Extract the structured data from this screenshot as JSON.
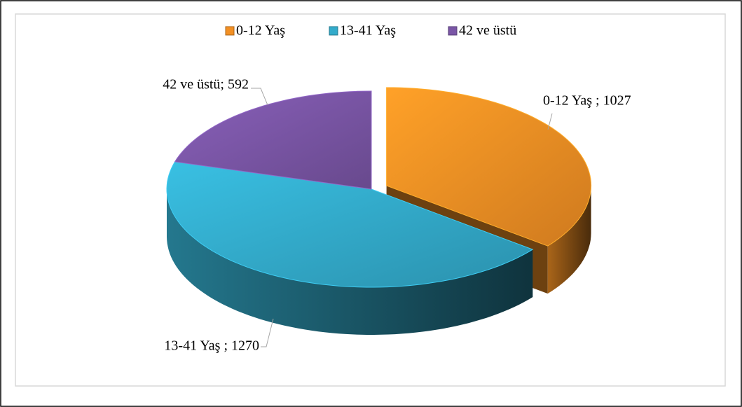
{
  "chart_data": {
    "type": "pie",
    "categories": [
      "0-12 Yaş",
      "13-41 Yaş",
      "42 ve üstü"
    ],
    "values": [
      1027,
      1270,
      592
    ],
    "value_labels": [
      "0-12 Yaş ; 1027",
      "13-41 Yaş ; 1270",
      "42 ve üstü; 592"
    ],
    "colors": [
      "#F39024",
      "#33ABCB",
      "#7A56A6"
    ],
    "legend": "top"
  }
}
